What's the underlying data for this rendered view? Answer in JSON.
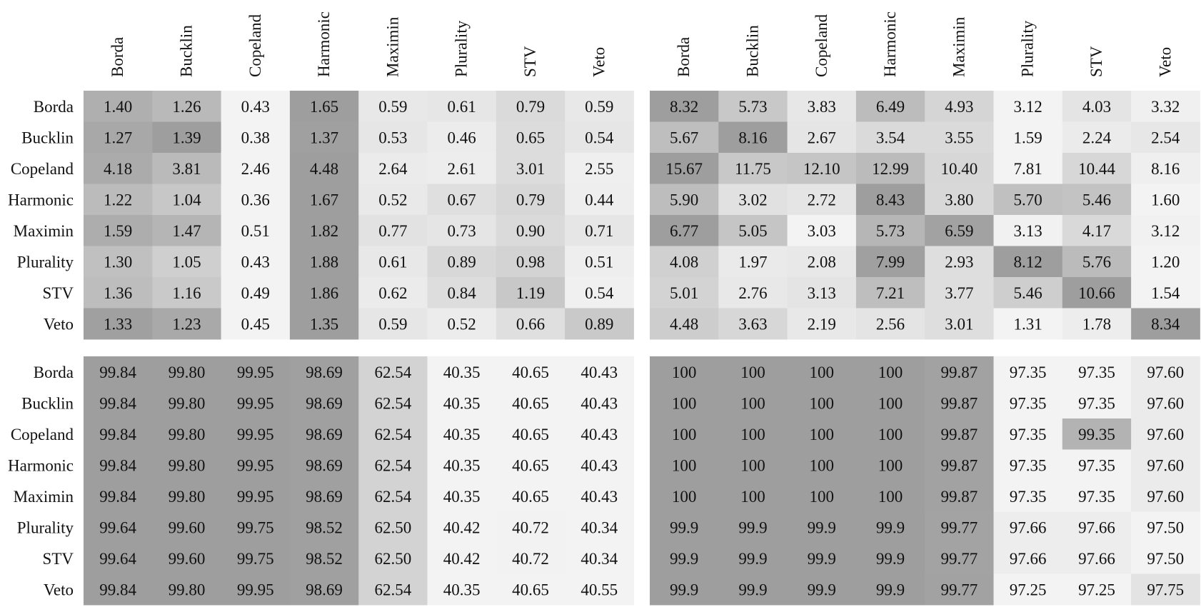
{
  "chart_data": [
    {
      "type": "heatmap",
      "rows": [
        "Borda",
        "Bucklin",
        "Copeland",
        "Harmonic",
        "Maximin",
        "Plurality",
        "STV",
        "Veto"
      ],
      "columns": [
        "Borda",
        "Bucklin",
        "Copeland",
        "Harmonic",
        "Maximin",
        "Plurality",
        "STV",
        "Veto"
      ],
      "values": [
        [
          "1.40",
          "1.26",
          "0.43",
          "1.65",
          "0.59",
          "0.61",
          "0.79",
          "0.59"
        ],
        [
          "1.27",
          "1.39",
          "0.38",
          "1.37",
          "0.53",
          "0.46",
          "0.65",
          "0.54"
        ],
        [
          "4.18",
          "3.81",
          "2.46",
          "4.48",
          "2.64",
          "2.61",
          "3.01",
          "2.55"
        ],
        [
          "1.22",
          "1.04",
          "0.36",
          "1.67",
          "0.52",
          "0.67",
          "0.79",
          "0.44"
        ],
        [
          "1.59",
          "1.47",
          "0.51",
          "1.82",
          "0.77",
          "0.73",
          "0.90",
          "0.71"
        ],
        [
          "1.30",
          "1.05",
          "0.43",
          "1.88",
          "0.61",
          "0.89",
          "0.98",
          "0.51"
        ],
        [
          "1.36",
          "1.16",
          "0.49",
          "1.86",
          "0.62",
          "0.84",
          "1.19",
          "0.54"
        ],
        [
          "1.33",
          "1.23",
          "0.45",
          "1.35",
          "0.59",
          "0.52",
          "0.66",
          "0.89"
        ]
      ],
      "shading": "row-wise"
    },
    {
      "type": "heatmap",
      "rows": [
        "Borda",
        "Bucklin",
        "Copeland",
        "Harmonic",
        "Maximin",
        "Plurality",
        "STV",
        "Veto"
      ],
      "columns": [
        "Borda",
        "Bucklin",
        "Copeland",
        "Harmonic",
        "Maximin",
        "Plurality",
        "STV",
        "Veto"
      ],
      "values": [
        [
          "8.32",
          "5.73",
          "3.83",
          "6.49",
          "4.93",
          "3.12",
          "4.03",
          "3.32"
        ],
        [
          "5.67",
          "8.16",
          "2.67",
          "3.54",
          "3.55",
          "1.59",
          "2.24",
          "2.54"
        ],
        [
          "15.67",
          "11.75",
          "12.10",
          "12.99",
          "10.40",
          "7.81",
          "10.44",
          "8.16"
        ],
        [
          "5.90",
          "3.02",
          "2.72",
          "8.43",
          "3.80",
          "5.70",
          "5.46",
          "1.60"
        ],
        [
          "6.77",
          "5.05",
          "3.03",
          "5.73",
          "6.59",
          "3.13",
          "4.17",
          "3.12"
        ],
        [
          "4.08",
          "1.97",
          "2.08",
          "7.99",
          "2.93",
          "8.12",
          "5.76",
          "1.20"
        ],
        [
          "5.01",
          "2.76",
          "3.13",
          "7.21",
          "3.77",
          "5.46",
          "10.66",
          "1.54"
        ],
        [
          "4.48",
          "3.63",
          "2.19",
          "2.56",
          "3.01",
          "1.31",
          "1.78",
          "8.34"
        ]
      ],
      "shading": "row-wise"
    },
    {
      "type": "heatmap",
      "rows": [
        "Borda",
        "Bucklin",
        "Copeland",
        "Harmonic",
        "Maximin",
        "Plurality",
        "STV",
        "Veto"
      ],
      "columns": [
        "Borda",
        "Bucklin",
        "Copeland",
        "Harmonic",
        "Maximin",
        "Plurality",
        "STV",
        "Veto"
      ],
      "values": [
        [
          "99.84",
          "99.80",
          "99.95",
          "98.69",
          "62.54",
          "40.35",
          "40.65",
          "40.43"
        ],
        [
          "99.84",
          "99.80",
          "99.95",
          "98.69",
          "62.54",
          "40.35",
          "40.65",
          "40.43"
        ],
        [
          "99.84",
          "99.80",
          "99.95",
          "98.69",
          "62.54",
          "40.35",
          "40.65",
          "40.43"
        ],
        [
          "99.84",
          "99.80",
          "99.95",
          "98.69",
          "62.54",
          "40.35",
          "40.65",
          "40.43"
        ],
        [
          "99.84",
          "99.80",
          "99.95",
          "98.69",
          "62.54",
          "40.35",
          "40.65",
          "40.43"
        ],
        [
          "99.64",
          "99.60",
          "99.75",
          "98.52",
          "62.50",
          "40.42",
          "40.72",
          "40.34"
        ],
        [
          "99.64",
          "99.60",
          "99.75",
          "98.52",
          "62.50",
          "40.42",
          "40.72",
          "40.34"
        ],
        [
          "99.84",
          "99.80",
          "99.95",
          "98.69",
          "62.54",
          "40.35",
          "40.65",
          "40.55"
        ]
      ],
      "shading": "row-wise"
    },
    {
      "type": "heatmap",
      "rows": [
        "Borda",
        "Bucklin",
        "Copeland",
        "Harmonic",
        "Maximin",
        "Plurality",
        "STV",
        "Veto"
      ],
      "columns": [
        "Borda",
        "Bucklin",
        "Copeland",
        "Harmonic",
        "Maximin",
        "Plurality",
        "STV",
        "Veto"
      ],
      "values": [
        [
          "100",
          "100",
          "100",
          "100",
          "99.87",
          "97.35",
          "97.35",
          "97.60"
        ],
        [
          "100",
          "100",
          "100",
          "100",
          "99.87",
          "97.35",
          "97.35",
          "97.60"
        ],
        [
          "100",
          "100",
          "100",
          "100",
          "99.87",
          "97.35",
          "99.35",
          "97.60"
        ],
        [
          "100",
          "100",
          "100",
          "100",
          "99.87",
          "97.35",
          "97.35",
          "97.60"
        ],
        [
          "100",
          "100",
          "100",
          "100",
          "99.87",
          "97.35",
          "97.35",
          "97.60"
        ],
        [
          "99.9",
          "99.9",
          "99.9",
          "99.9",
          "99.77",
          "97.66",
          "97.66",
          "97.50"
        ],
        [
          "99.9",
          "99.9",
          "99.9",
          "99.9",
          "99.77",
          "97.66",
          "97.66",
          "97.50"
        ],
        [
          "99.9",
          "99.9",
          "99.9",
          "99.9",
          "99.77",
          "97.25",
          "97.25",
          "97.75"
        ]
      ],
      "shading": "row-wise"
    }
  ]
}
